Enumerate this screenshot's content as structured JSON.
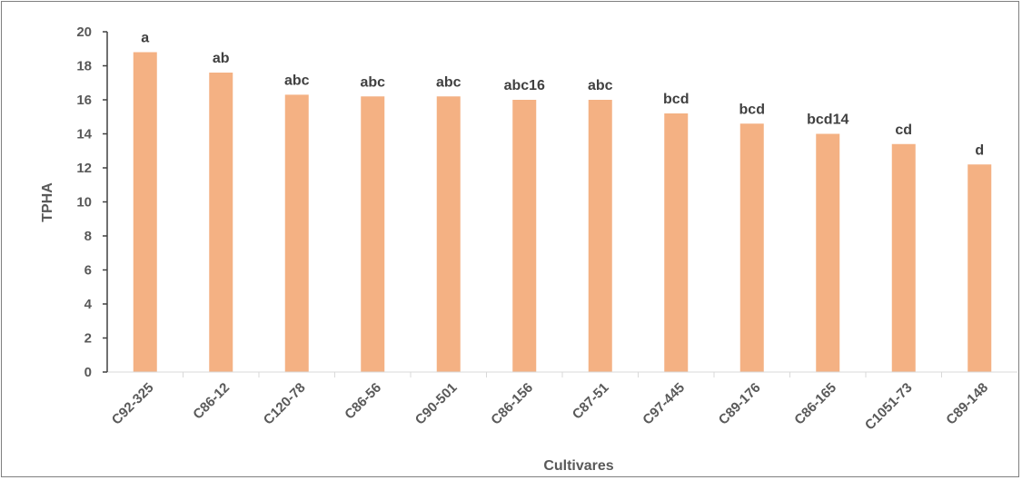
{
  "chart_data": {
    "type": "bar",
    "title": "",
    "xlabel": "Cultivares",
    "ylabel": "TPHA",
    "ylim": [
      0,
      20
    ],
    "yticks": [
      0,
      2,
      4,
      6,
      8,
      10,
      12,
      14,
      16,
      18,
      20
    ],
    "categories": [
      "C92-325",
      "C86-12",
      "C120-78",
      "C86-56",
      "C90-501",
      "C86-156",
      "C87-51",
      "C97-445",
      "C89-176",
      "C86-165",
      "C1051-73",
      "C89-148"
    ],
    "values": [
      18.8,
      17.6,
      16.3,
      16.2,
      16.2,
      16.0,
      16.0,
      15.2,
      14.6,
      14.0,
      13.4,
      12.2
    ],
    "labels": [
      "a",
      "ab",
      "abc",
      "abc",
      "abc",
      "abc16",
      "abc",
      "bcd",
      "bcd",
      "bcd14",
      "cd",
      "d"
    ],
    "bar_color": "#f4b183",
    "grid": false,
    "legend": "none"
  }
}
